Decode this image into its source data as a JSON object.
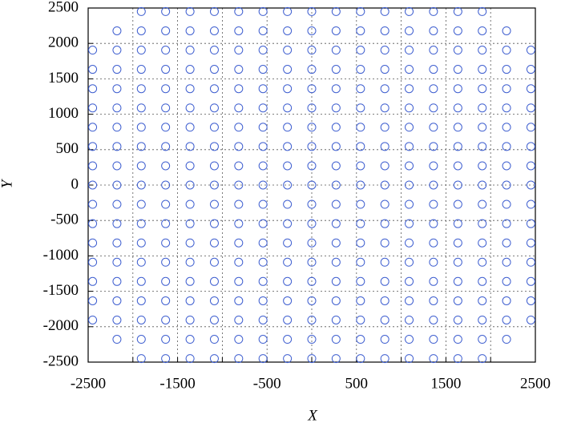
{
  "chart_data": {
    "type": "scatter",
    "xlabel": "X",
    "ylabel": "Y",
    "color": "#3f5fd0",
    "grid": true,
    "xlim": [
      -2500,
      2500
    ],
    "ylim": [
      -2500,
      2500
    ],
    "xticks": [
      -2500,
      -1500,
      -500,
      500,
      1500,
      2500
    ],
    "xminor_ticks": [
      -2000,
      -1000,
      0,
      1000,
      2000
    ],
    "yticks": [
      -2500,
      -2000,
      -1500,
      -1000,
      -500,
      0,
      500,
      1000,
      1500,
      2000,
      2500
    ],
    "series": [
      {
        "x": [
          -1906,
          -1634,
          -1361,
          -1089,
          -817,
          -545,
          -272,
          0,
          272,
          545,
          817,
          1089,
          1361,
          1634,
          1906
        ],
        "values": [
          2450,
          2450,
          2450,
          2450,
          2450,
          2450,
          2450,
          2450,
          2450,
          2450,
          2450,
          2450,
          2450,
          2450,
          2450
        ]
      },
      {
        "x": [
          -2178,
          -1906,
          -1634,
          -1361,
          -1089,
          -817,
          -545,
          -272,
          0,
          272,
          545,
          817,
          1089,
          1361,
          1634,
          1906,
          2178
        ],
        "values": [
          2178,
          2178,
          2178,
          2178,
          2178,
          2178,
          2178,
          2178,
          2178,
          2178,
          2178,
          2178,
          2178,
          2178,
          2178,
          2178,
          2178
        ]
      },
      {
        "x": [
          -2450,
          -2178,
          -1906,
          -1634,
          -1361,
          -1089,
          -817,
          -545,
          -272,
          0,
          272,
          545,
          817,
          1089,
          1361,
          1634,
          1906,
          2178,
          2450
        ],
        "values": [
          1906,
          1906,
          1906,
          1906,
          1906,
          1906,
          1906,
          1906,
          1906,
          1906,
          1906,
          1906,
          1906,
          1906,
          1906,
          1906,
          1906,
          1906,
          1906
        ]
      },
      {
        "x": [
          -2450,
          -2178,
          -1906,
          -1634,
          -1361,
          -1089,
          -817,
          -545,
          -272,
          0,
          272,
          545,
          817,
          1089,
          1361,
          1634,
          1906,
          2178,
          2450
        ],
        "values": [
          1634,
          1634,
          1634,
          1634,
          1634,
          1634,
          1634,
          1634,
          1634,
          1634,
          1634,
          1634,
          1634,
          1634,
          1634,
          1634,
          1634,
          1634,
          1634
        ]
      },
      {
        "x": [
          -2450,
          -2178,
          -1906,
          -1634,
          -1361,
          -1089,
          -817,
          -545,
          -272,
          0,
          272,
          545,
          817,
          1089,
          1361,
          1634,
          1906,
          2178,
          2450
        ],
        "values": [
          1361,
          1361,
          1361,
          1361,
          1361,
          1361,
          1361,
          1361,
          1361,
          1361,
          1361,
          1361,
          1361,
          1361,
          1361,
          1361,
          1361,
          1361,
          1361
        ]
      },
      {
        "x": [
          -2450,
          -2178,
          -1906,
          -1634,
          -1361,
          -1089,
          -817,
          -545,
          -272,
          0,
          272,
          545,
          817,
          1089,
          1361,
          1634,
          1906,
          2178,
          2450
        ],
        "values": [
          1089,
          1089,
          1089,
          1089,
          1089,
          1089,
          1089,
          1089,
          1089,
          1089,
          1089,
          1089,
          1089,
          1089,
          1089,
          1089,
          1089,
          1089,
          1089
        ]
      },
      {
        "x": [
          -2450,
          -2178,
          -1906,
          -1634,
          -1361,
          -1089,
          -817,
          -545,
          -272,
          0,
          272,
          545,
          817,
          1089,
          1361,
          1634,
          1906,
          2178,
          2450
        ],
        "values": [
          817,
          817,
          817,
          817,
          817,
          817,
          817,
          817,
          817,
          817,
          817,
          817,
          817,
          817,
          817,
          817,
          817,
          817,
          817
        ]
      },
      {
        "x": [
          -2450,
          -2178,
          -1906,
          -1634,
          -1361,
          -1089,
          -817,
          -545,
          -272,
          0,
          272,
          545,
          817,
          1089,
          1361,
          1634,
          1906,
          2178,
          2450
        ],
        "values": [
          545,
          545,
          545,
          545,
          545,
          545,
          545,
          545,
          545,
          545,
          545,
          545,
          545,
          545,
          545,
          545,
          545,
          545,
          545
        ]
      },
      {
        "x": [
          -2450,
          -2178,
          -1906,
          -1634,
          -1361,
          -1089,
          -817,
          -545,
          -272,
          0,
          272,
          545,
          817,
          1089,
          1361,
          1634,
          1906,
          2178,
          2450
        ],
        "values": [
          272,
          272,
          272,
          272,
          272,
          272,
          272,
          272,
          272,
          272,
          272,
          272,
          272,
          272,
          272,
          272,
          272,
          272,
          272
        ]
      },
      {
        "x": [
          -2450,
          -2178,
          -1906,
          -1634,
          -1361,
          -1089,
          -817,
          -545,
          -272,
          0,
          272,
          545,
          817,
          1089,
          1361,
          1634,
          1906,
          2178,
          2450
        ],
        "values": [
          0,
          0,
          0,
          0,
          0,
          0,
          0,
          0,
          0,
          0,
          0,
          0,
          0,
          0,
          0,
          0,
          0,
          0,
          0
        ]
      },
      {
        "x": [
          -2450,
          -2178,
          -1906,
          -1634,
          -1361,
          -1089,
          -817,
          -545,
          -272,
          0,
          272,
          545,
          817,
          1089,
          1361,
          1634,
          1906,
          2178,
          2450
        ],
        "values": [
          -272,
          -272,
          -272,
          -272,
          -272,
          -272,
          -272,
          -272,
          -272,
          -272,
          -272,
          -272,
          -272,
          -272,
          -272,
          -272,
          -272,
          -272,
          -272
        ]
      },
      {
        "x": [
          -2450,
          -2178,
          -1906,
          -1634,
          -1361,
          -1089,
          -817,
          -545,
          -272,
          0,
          272,
          545,
          817,
          1089,
          1361,
          1634,
          1906,
          2178,
          2450
        ],
        "values": [
          -545,
          -545,
          -545,
          -545,
          -545,
          -545,
          -545,
          -545,
          -545,
          -545,
          -545,
          -545,
          -545,
          -545,
          -545,
          -545,
          -545,
          -545,
          -545
        ]
      },
      {
        "x": [
          -2450,
          -2178,
          -1906,
          -1634,
          -1361,
          -1089,
          -817,
          -545,
          -272,
          0,
          272,
          545,
          817,
          1089,
          1361,
          1634,
          1906,
          2178,
          2450
        ],
        "values": [
          -817,
          -817,
          -817,
          -817,
          -817,
          -817,
          -817,
          -817,
          -817,
          -817,
          -817,
          -817,
          -817,
          -817,
          -817,
          -817,
          -817,
          -817,
          -817
        ]
      },
      {
        "x": [
          -2450,
          -2178,
          -1906,
          -1634,
          -1361,
          -1089,
          -817,
          -545,
          -272,
          0,
          272,
          545,
          817,
          1089,
          1361,
          1634,
          1906,
          2178,
          2450
        ],
        "values": [
          -1089,
          -1089,
          -1089,
          -1089,
          -1089,
          -1089,
          -1089,
          -1089,
          -1089,
          -1089,
          -1089,
          -1089,
          -1089,
          -1089,
          -1089,
          -1089,
          -1089,
          -1089,
          -1089
        ]
      },
      {
        "x": [
          -2450,
          -2178,
          -1906,
          -1634,
          -1361,
          -1089,
          -817,
          -545,
          -272,
          0,
          272,
          545,
          817,
          1089,
          1361,
          1634,
          1906,
          2178,
          2450
        ],
        "values": [
          -1361,
          -1361,
          -1361,
          -1361,
          -1361,
          -1361,
          -1361,
          -1361,
          -1361,
          -1361,
          -1361,
          -1361,
          -1361,
          -1361,
          -1361,
          -1361,
          -1361,
          -1361,
          -1361
        ]
      },
      {
        "x": [
          -2450,
          -2178,
          -1906,
          -1634,
          -1361,
          -1089,
          -817,
          -545,
          -272,
          0,
          272,
          545,
          817,
          1089,
          1361,
          1634,
          1906,
          2178,
          2450
        ],
        "values": [
          -1634,
          -1634,
          -1634,
          -1634,
          -1634,
          -1634,
          -1634,
          -1634,
          -1634,
          -1634,
          -1634,
          -1634,
          -1634,
          -1634,
          -1634,
          -1634,
          -1634,
          -1634,
          -1634
        ]
      },
      {
        "x": [
          -2450,
          -2178,
          -1906,
          -1634,
          -1361,
          -1089,
          -817,
          -545,
          -272,
          0,
          272,
          545,
          817,
          1089,
          1361,
          1634,
          1906,
          2178,
          2450
        ],
        "values": [
          -1906,
          -1906,
          -1906,
          -1906,
          -1906,
          -1906,
          -1906,
          -1906,
          -1906,
          -1906,
          -1906,
          -1906,
          -1906,
          -1906,
          -1906,
          -1906,
          -1906,
          -1906,
          -1906
        ]
      },
      {
        "x": [
          -2178,
          -1906,
          -1634,
          -1361,
          -1089,
          -817,
          -545,
          -272,
          0,
          272,
          545,
          817,
          1089,
          1361,
          1634,
          1906,
          2178
        ],
        "values": [
          -2178,
          -2178,
          -2178,
          -2178,
          -2178,
          -2178,
          -2178,
          -2178,
          -2178,
          -2178,
          -2178,
          -2178,
          -2178,
          -2178,
          -2178,
          -2178,
          -2178
        ]
      },
      {
        "x": [
          -1906,
          -1634,
          -1361,
          -1089,
          -817,
          -545,
          -272,
          0,
          272,
          545,
          817,
          1089,
          1361,
          1634,
          1906
        ],
        "values": [
          -2450,
          -2450,
          -2450,
          -2450,
          -2450,
          -2450,
          -2450,
          -2450,
          -2450,
          -2450,
          -2450,
          -2450,
          -2450,
          -2450,
          -2450
        ]
      }
    ]
  }
}
